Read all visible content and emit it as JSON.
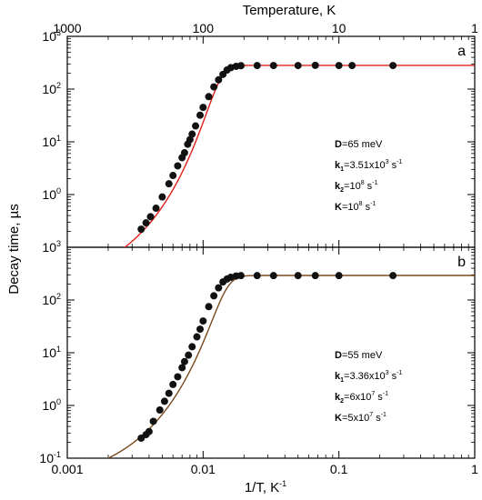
{
  "chart_data": {
    "type": "scatter",
    "figure": {
      "xlabel_bottom": "1/T, K",
      "xlabel_bottom_sup": "-1",
      "xlabel_top": "Temperature, K",
      "ylabel": "Decay time, µs",
      "x_scale": "log",
      "xlim": [
        0.001,
        1
      ],
      "x_ticks": [
        {
          "value": 0.001,
          "label": "0.001"
        },
        {
          "value": 0.01,
          "label": "0.01"
        },
        {
          "value": 0.1,
          "label": "0.1"
        },
        {
          "value": 1,
          "label": "1"
        }
      ],
      "top_axis_ticks": [
        {
          "value": 1000,
          "label": "1000"
        },
        {
          "value": 100,
          "label": "100"
        },
        {
          "value": 10,
          "label": "10"
        },
        {
          "value": 1,
          "label": "1"
        }
      ],
      "y_scale": "log",
      "ylim": [
        0.1,
        1000
      ],
      "y_ticks": [
        {
          "value": 0.1,
          "mant": "10",
          "exp": "-1"
        },
        {
          "value": 1,
          "mant": "10",
          "exp": "0"
        },
        {
          "value": 10,
          "mant": "10",
          "exp": "1"
        },
        {
          "value": 100,
          "mant": "10",
          "exp": "2"
        },
        {
          "value": 1000,
          "mant": "10",
          "exp": "3"
        }
      ]
    },
    "panels": [
      {
        "label": "a",
        "fit_color": "#e0201b",
        "marker_color": "#111111",
        "points": [
          [
            0.0035,
            0.22
          ],
          [
            0.0038,
            0.29
          ],
          [
            0.0041,
            0.38
          ],
          [
            0.0045,
            0.55
          ],
          [
            0.005,
            0.9
          ],
          [
            0.0056,
            1.6
          ],
          [
            0.006,
            2.3
          ],
          [
            0.0065,
            3.5
          ],
          [
            0.007,
            5.0
          ],
          [
            0.0073,
            6.2
          ],
          [
            0.0077,
            9.0
          ],
          [
            0.008,
            11.0
          ],
          [
            0.0083,
            14.0
          ],
          [
            0.0088,
            20.0
          ],
          [
            0.0095,
            32.0
          ],
          [
            0.01,
            45.0
          ],
          [
            0.011,
            72.0
          ],
          [
            0.012,
            110.0
          ],
          [
            0.013,
            150.0
          ],
          [
            0.014,
            190.0
          ],
          [
            0.015,
            230.0
          ],
          [
            0.016,
            255.0
          ],
          [
            0.0175,
            270.0
          ],
          [
            0.019,
            278.0
          ],
          [
            0.025,
            280.0
          ],
          [
            0.033,
            280.0
          ],
          [
            0.05,
            280.0
          ],
          [
            0.067,
            282.0
          ],
          [
            0.1,
            280.0
          ],
          [
            0.125,
            280.0
          ],
          [
            0.25,
            280.0
          ]
        ],
        "params": [
          {
            "name": "D",
            "sub": "",
            "value": "=65 meV",
            "sup": "",
            "post": ""
          },
          {
            "name": "k",
            "sub": "1",
            "value": "=3.51x10",
            "sup": "3",
            "post": " s",
            "post_sup": "-1"
          },
          {
            "name": "k",
            "sub": "2",
            "value": "=10",
            "sup": "8",
            "post": " s",
            "post_sup": "-1"
          },
          {
            "name": "K",
            "sub": "",
            "value": "=10",
            "sup": "8",
            "post": " s",
            "post_sup": "-1"
          }
        ],
        "fit": {
          "E_meV": 65,
          "k1": 3510,
          "k2": 100000000.0,
          "K": 100000000.0,
          "plateau": 282
        }
      },
      {
        "label": "b",
        "fit_color": "#7a4a1e",
        "marker_color": "#111111",
        "points": [
          [
            0.0035,
            0.24
          ],
          [
            0.0038,
            0.28
          ],
          [
            0.004,
            0.32
          ],
          [
            0.0043,
            0.5
          ],
          [
            0.0048,
            0.82
          ],
          [
            0.0052,
            1.2
          ],
          [
            0.0056,
            1.7
          ],
          [
            0.006,
            2.5
          ],
          [
            0.0065,
            3.5
          ],
          [
            0.007,
            5.2
          ],
          [
            0.0073,
            6.8
          ],
          [
            0.0078,
            9.0
          ],
          [
            0.0083,
            13.0
          ],
          [
            0.009,
            20.0
          ],
          [
            0.0095,
            28.0
          ],
          [
            0.01,
            40.0
          ],
          [
            0.011,
            75.0
          ],
          [
            0.012,
            120.0
          ],
          [
            0.013,
            170.0
          ],
          [
            0.014,
            220.0
          ],
          [
            0.015,
            250.0
          ],
          [
            0.016,
            270.0
          ],
          [
            0.0175,
            285.0
          ],
          [
            0.019,
            290.0
          ],
          [
            0.025,
            290.0
          ],
          [
            0.033,
            290.0
          ],
          [
            0.05,
            290.0
          ],
          [
            0.067,
            290.0
          ],
          [
            0.1,
            290.0
          ],
          [
            0.25,
            290.0
          ]
        ],
        "params": [
          {
            "name": "D",
            "sub": "",
            "value": "=55 meV",
            "sup": "",
            "post": ""
          },
          {
            "name": "k",
            "sub": "1",
            "value": "=3.36x10",
            "sup": "3",
            "post": " s",
            "post_sup": "-1"
          },
          {
            "name": "k",
            "sub": "2",
            "value": "=6x10",
            "sup": "7",
            "post": " s",
            "post_sup": "-1"
          },
          {
            "name": "K",
            "sub": "",
            "value": "=5x10",
            "sup": "7",
            "post": " s",
            "post_sup": "-1"
          }
        ],
        "fit": {
          "E_meV": 55,
          "k1": 3360,
          "k2": 60000000.0,
          "K": 50000000.0,
          "plateau": 292
        }
      }
    ]
  }
}
